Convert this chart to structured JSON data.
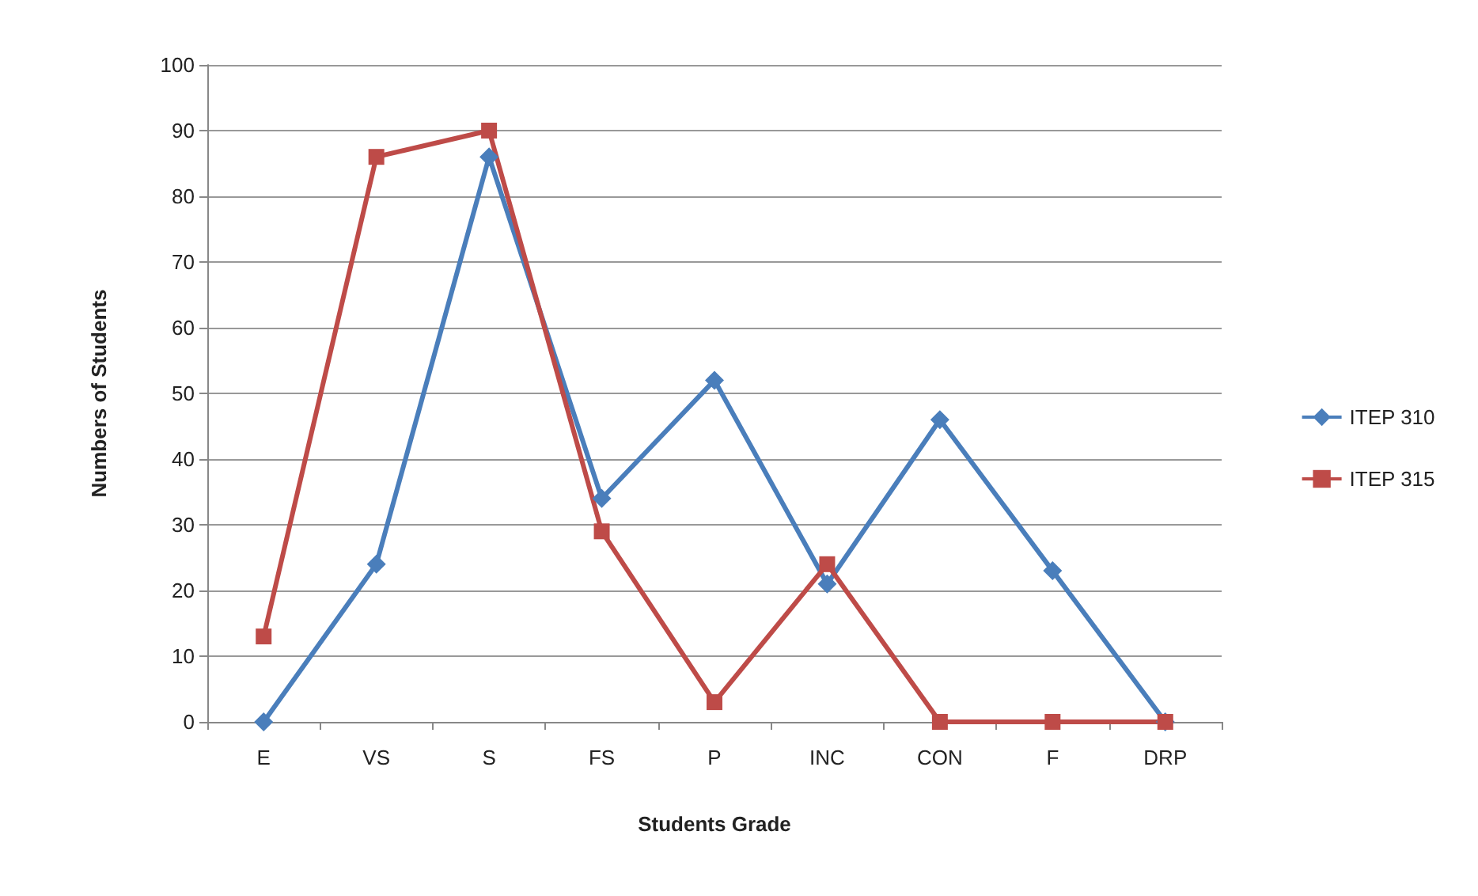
{
  "chart_data": {
    "type": "line",
    "xlabel": "Students Grade",
    "ylabel": "Numbers of Students",
    "categories": [
      "E",
      "VS",
      "S",
      "FS",
      "P",
      "INC",
      "CON",
      "F",
      "DRP"
    ],
    "series": [
      {
        "name": "ITEP 310",
        "color": "#4a7ebb",
        "marker": "diamond",
        "values": [
          0,
          24,
          86,
          34,
          52,
          21,
          46,
          23,
          0
        ]
      },
      {
        "name": "ITEP 315",
        "color": "#be4b48",
        "marker": "square",
        "values": [
          13,
          86,
          90,
          29,
          3,
          24,
          0,
          0,
          0
        ]
      }
    ],
    "ylim": [
      0,
      100
    ],
    "yticks": [
      0,
      10,
      20,
      30,
      40,
      50,
      60,
      70,
      80,
      90,
      100
    ],
    "grid": "y",
    "legend": "right"
  }
}
